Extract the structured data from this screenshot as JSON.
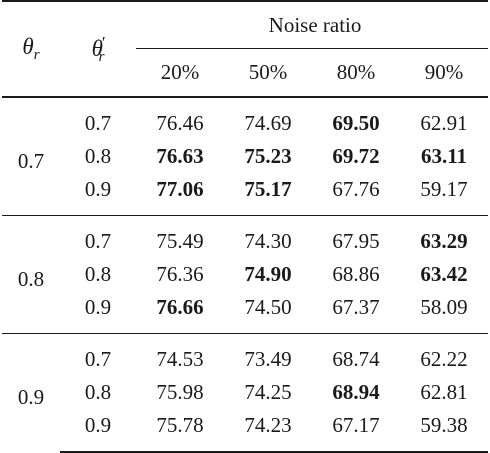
{
  "header": {
    "theta_r": "θ",
    "theta_r_sub": "r",
    "theta_rp": "θ",
    "theta_rp_prime": "′",
    "theta_rp_sub": "r",
    "noise_ratio_label": "Noise ratio",
    "columns": [
      "20%",
      "50%",
      "80%",
      "90%"
    ]
  },
  "groups": [
    {
      "theta_r": "0.7",
      "rows": [
        {
          "theta_rp": "0.7",
          "values": [
            "76.46",
            "74.69",
            "69.50",
            "62.91"
          ],
          "bold": [
            false,
            false,
            true,
            false
          ]
        },
        {
          "theta_rp": "0.8",
          "values": [
            "76.63",
            "75.23",
            "69.72",
            "63.11"
          ],
          "bold": [
            true,
            true,
            true,
            true
          ]
        },
        {
          "theta_rp": "0.9",
          "values": [
            "77.06",
            "75.17",
            "67.76",
            "59.17"
          ],
          "bold": [
            true,
            true,
            false,
            false
          ]
        }
      ]
    },
    {
      "theta_r": "0.8",
      "rows": [
        {
          "theta_rp": "0.7",
          "values": [
            "75.49",
            "74.30",
            "67.95",
            "63.29"
          ],
          "bold": [
            false,
            false,
            false,
            true
          ]
        },
        {
          "theta_rp": "0.8",
          "values": [
            "76.36",
            "74.90",
            "68.86",
            "63.42"
          ],
          "bold": [
            false,
            true,
            false,
            true
          ]
        },
        {
          "theta_rp": "0.9",
          "values": [
            "76.66",
            "74.50",
            "67.37",
            "58.09"
          ],
          "bold": [
            true,
            false,
            false,
            false
          ]
        }
      ]
    },
    {
      "theta_r": "0.9",
      "rows": [
        {
          "theta_rp": "0.7",
          "values": [
            "74.53",
            "73.49",
            "68.74",
            "62.22"
          ],
          "bold": [
            false,
            false,
            false,
            false
          ]
        },
        {
          "theta_rp": "0.8",
          "values": [
            "75.98",
            "74.25",
            "68.94",
            "62.81"
          ],
          "bold": [
            false,
            false,
            true,
            false
          ]
        },
        {
          "theta_rp": "0.9",
          "values": [
            "75.78",
            "74.23",
            "67.17",
            "59.38"
          ],
          "bold": [
            false,
            false,
            false,
            false
          ]
        }
      ]
    }
  ]
}
